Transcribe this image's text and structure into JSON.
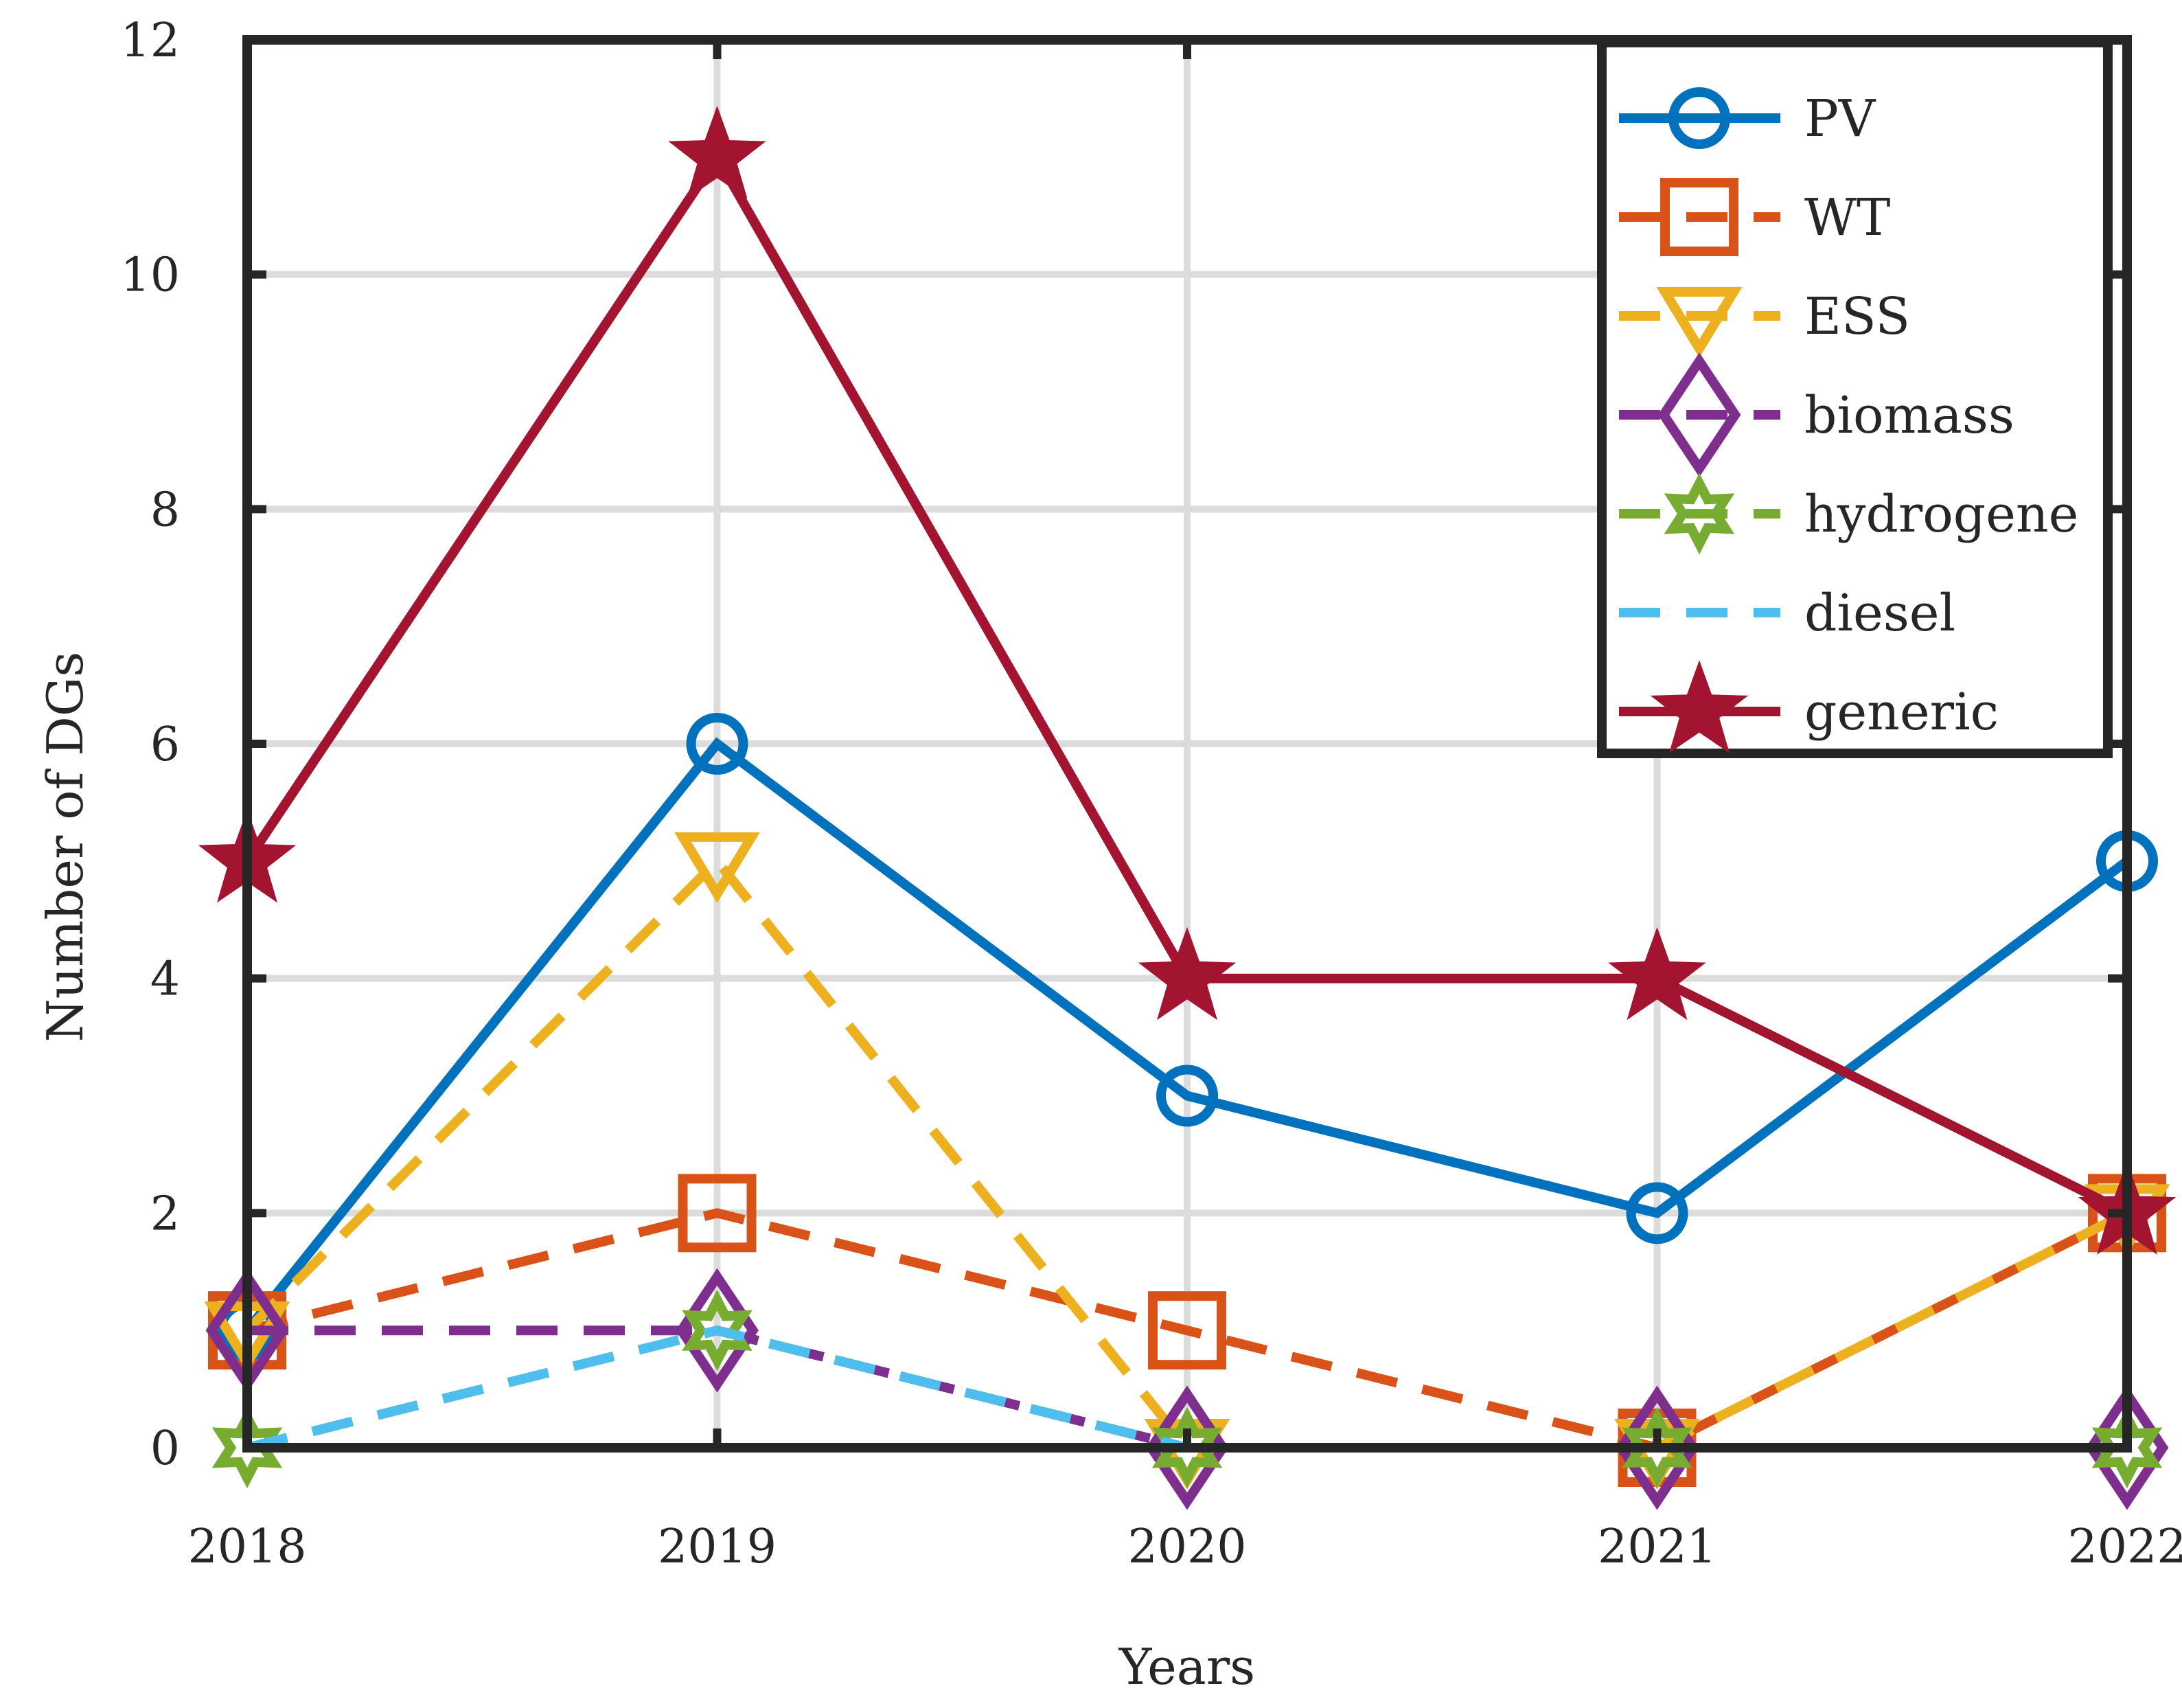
{
  "chart_data": {
    "type": "line",
    "title": "",
    "xlabel": "Years",
    "ylabel": "Number of DGs",
    "x": [
      2018,
      2019,
      2020,
      2021,
      2022
    ],
    "x_tick_labels": [
      "2018",
      "2019",
      "2020",
      "2021",
      "2022"
    ],
    "xlim": [
      2018,
      2022
    ],
    "ylim": [
      0,
      12
    ],
    "y_ticks": [
      0,
      2,
      4,
      6,
      8,
      10,
      12
    ],
    "y_tick_labels": [
      "0",
      "2",
      "4",
      "6",
      "8",
      "10",
      "12"
    ],
    "grid": true,
    "legend_position": "top-right",
    "series": [
      {
        "name": "PV",
        "values": [
          1,
          6,
          3,
          2,
          5
        ],
        "color": "#0072BD",
        "marker": "circle",
        "dash": "solid"
      },
      {
        "name": "WT",
        "values": [
          1,
          2,
          1,
          0,
          2
        ],
        "color": "#D95319",
        "marker": "square",
        "dash": "dashed"
      },
      {
        "name": "ESS",
        "values": [
          1,
          5,
          0,
          0,
          2
        ],
        "color": "#EDB120",
        "marker": "triangle-down",
        "dash": "dashed"
      },
      {
        "name": "biomass",
        "values": [
          1,
          1,
          0,
          0,
          0
        ],
        "color": "#7E2F8E",
        "marker": "diamond",
        "dash": "dashed"
      },
      {
        "name": "hydrogene",
        "values": [
          0,
          1,
          0,
          0,
          0
        ],
        "color": "#77AC30",
        "marker": "hexagram",
        "dash": "dashed"
      },
      {
        "name": "diesel",
        "values": [
          0,
          1,
          0,
          0,
          0
        ],
        "color": "#4DBEEE",
        "marker": "none",
        "dash": "dashed"
      },
      {
        "name": "generic",
        "values": [
          5,
          11,
          4,
          4,
          2
        ],
        "color": "#A2142F",
        "marker": "pentagram",
        "dash": "solid"
      }
    ]
  }
}
